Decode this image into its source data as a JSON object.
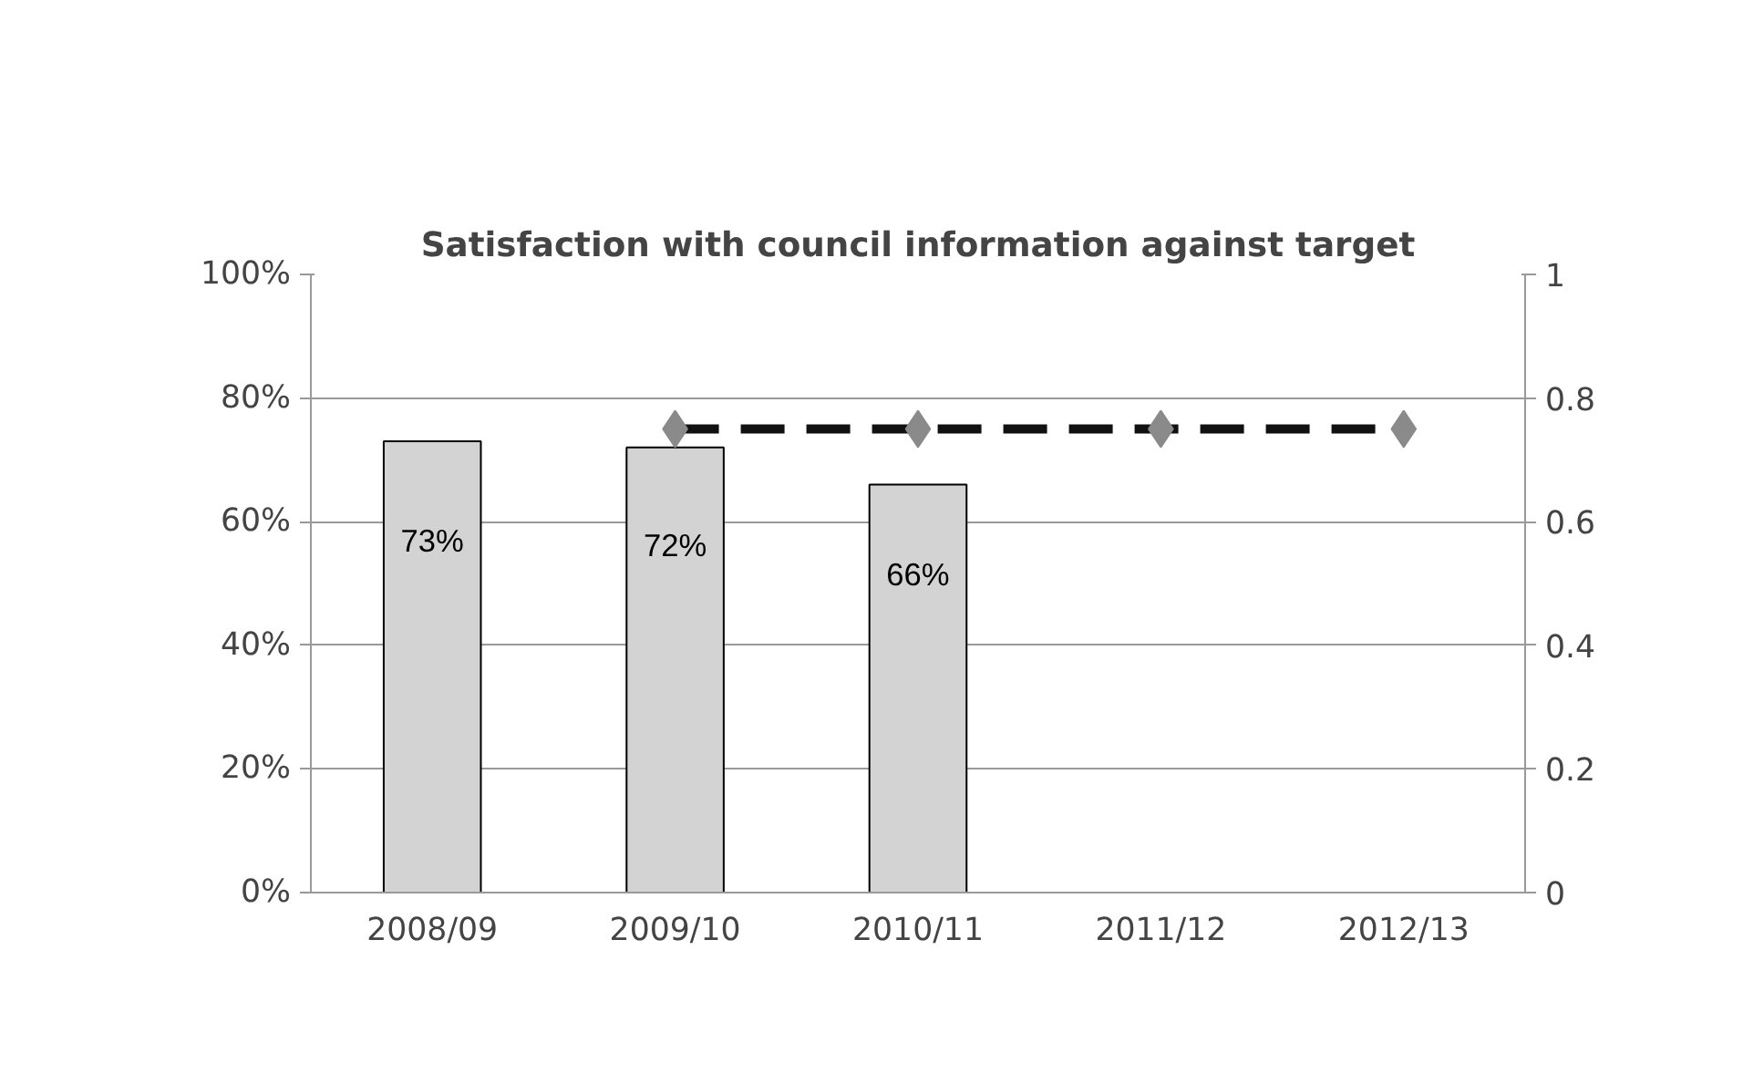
{
  "chart_data": {
    "type": "bar",
    "title": "Satisfaction with council information against target",
    "categories": [
      "2008/09",
      "2009/10",
      "2010/11",
      "2011/12",
      "2012/13"
    ],
    "series": [
      {
        "color": "#d3d3d3",
        "values": [
          73,
          72,
          66,
          null,
          null
        ],
        "value_labels": [
          "73%",
          "72%",
          "66%",
          null,
          null
        ]
      },
      {
        "type": "line",
        "axis": "y2",
        "color": "#111111",
        "values": [
          null,
          0.75,
          0.75,
          0.75,
          0.75
        ],
        "marker": "diamond",
        "line_style": "dashed"
      }
    ],
    "ylim": [
      0,
      100
    ],
    "yticks": [
      {
        "value": 0,
        "label": "0%"
      },
      {
        "value": 20,
        "label": "20%"
      },
      {
        "value": 40,
        "label": "40%"
      },
      {
        "value": 60,
        "label": "60%"
      },
      {
        "value": 80,
        "label": "80%"
      },
      {
        "value": 100,
        "label": "100%"
      }
    ],
    "y2lim": [
      0,
      1
    ],
    "y2ticks": [
      0,
      {
        "value": 0.2,
        "label": "0.2"
      },
      {
        "value": 0.4,
        "label": "0.4"
      },
      {
        "value": 0.6,
        "label": "0.6"
      },
      {
        "value": 0.8,
        "label": "0.8"
      },
      1
    ],
    "grid": "y"
  }
}
